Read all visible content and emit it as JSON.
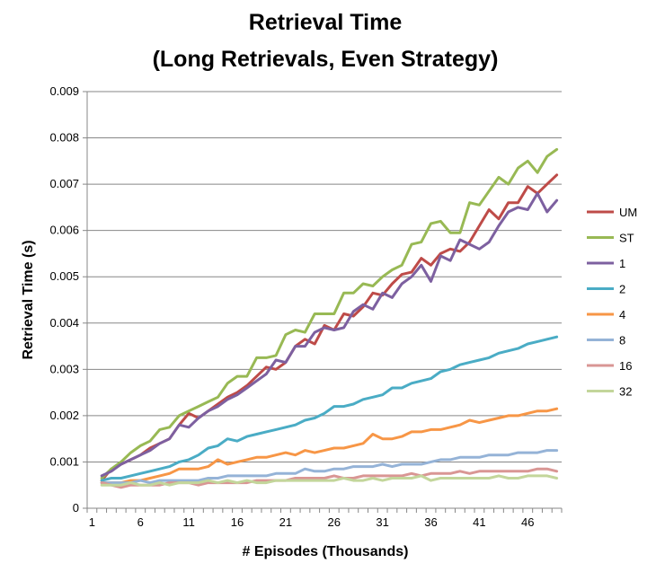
{
  "chart_data": {
    "type": "line",
    "title_line1": "Retrieval Time",
    "title_line2": "(Long Retrievals, Even Strategy)",
    "xlabel": "# Episodes (Thousands)",
    "ylabel": "Retrieval Time (s)",
    "x_ticks": [
      "1",
      "6",
      "11",
      "16",
      "21",
      "26",
      "31",
      "36",
      "41",
      "46"
    ],
    "y_ticks": [
      "0",
      "0.001",
      "0.002",
      "0.003",
      "0.004",
      "0.005",
      "0.006",
      "0.007",
      "0.008",
      "0.009"
    ],
    "xlim": [
      1,
      50
    ],
    "ylim": [
      0,
      0.009
    ],
    "grid": "horizontal",
    "legend_position": "right",
    "x": [
      2,
      3,
      4,
      5,
      6,
      7,
      8,
      9,
      10,
      11,
      12,
      13,
      14,
      15,
      16,
      17,
      18,
      19,
      20,
      21,
      22,
      23,
      24,
      25,
      26,
      27,
      28,
      29,
      30,
      31,
      32,
      33,
      34,
      35,
      36,
      37,
      38,
      39,
      40,
      41,
      42,
      43,
      44,
      45,
      46,
      47,
      48,
      49
    ],
    "series": [
      {
        "name": "UM",
        "color": "#be4b48",
        "values": [
          0.0006,
          0.00085,
          0.00095,
          0.00105,
          0.00115,
          0.0013,
          0.0014,
          0.0015,
          0.0018,
          0.00205,
          0.00195,
          0.0021,
          0.00225,
          0.0024,
          0.0025,
          0.00265,
          0.00285,
          0.00305,
          0.003,
          0.00315,
          0.0035,
          0.00365,
          0.00355,
          0.00395,
          0.00385,
          0.0042,
          0.00415,
          0.00435,
          0.00465,
          0.0046,
          0.00485,
          0.00505,
          0.0051,
          0.0054,
          0.00525,
          0.0055,
          0.0056,
          0.00555,
          0.00575,
          0.0061,
          0.00645,
          0.00625,
          0.0066,
          0.0066,
          0.00695,
          0.0068,
          0.007,
          0.0072
        ]
      },
      {
        "name": "ST",
        "color": "#98b954",
        "values": [
          0.00065,
          0.00085,
          0.001,
          0.0012,
          0.00135,
          0.00145,
          0.0017,
          0.00175,
          0.002,
          0.0021,
          0.0022,
          0.0023,
          0.0024,
          0.0027,
          0.00285,
          0.00285,
          0.00325,
          0.00325,
          0.0033,
          0.00375,
          0.00385,
          0.0038,
          0.0042,
          0.0042,
          0.0042,
          0.00465,
          0.00465,
          0.00485,
          0.0048,
          0.005,
          0.00515,
          0.00525,
          0.0057,
          0.00575,
          0.00615,
          0.0062,
          0.00595,
          0.00595,
          0.0066,
          0.00655,
          0.00685,
          0.00715,
          0.007,
          0.00735,
          0.0075,
          0.00725,
          0.0076,
          0.00775
        ]
      },
      {
        "name": "1",
        "color": "#7d60a0",
        "values": [
          0.0007,
          0.0008,
          0.00095,
          0.00105,
          0.00115,
          0.00125,
          0.0014,
          0.0015,
          0.0018,
          0.00175,
          0.00195,
          0.0021,
          0.0022,
          0.00235,
          0.00245,
          0.0026,
          0.00275,
          0.0029,
          0.0032,
          0.00315,
          0.0035,
          0.0035,
          0.0038,
          0.0039,
          0.00385,
          0.0039,
          0.00425,
          0.0044,
          0.0043,
          0.00465,
          0.00455,
          0.00485,
          0.005,
          0.00525,
          0.0049,
          0.00545,
          0.00535,
          0.0058,
          0.0057,
          0.0056,
          0.00575,
          0.0061,
          0.0064,
          0.0065,
          0.00645,
          0.0068,
          0.0064,
          0.00665
        ]
      },
      {
        "name": "2",
        "color": "#4aacc5",
        "values": [
          0.0006,
          0.00065,
          0.00065,
          0.0007,
          0.00075,
          0.0008,
          0.00085,
          0.0009,
          0.001,
          0.00105,
          0.00115,
          0.0013,
          0.00135,
          0.0015,
          0.00145,
          0.00155,
          0.0016,
          0.00165,
          0.0017,
          0.00175,
          0.0018,
          0.0019,
          0.00195,
          0.00205,
          0.0022,
          0.0022,
          0.00225,
          0.00235,
          0.0024,
          0.00245,
          0.0026,
          0.0026,
          0.0027,
          0.00275,
          0.0028,
          0.00295,
          0.003,
          0.0031,
          0.00315,
          0.0032,
          0.00325,
          0.00335,
          0.0034,
          0.00345,
          0.00355,
          0.0036,
          0.00365,
          0.0037
        ]
      },
      {
        "name": "4",
        "color": "#f79646",
        "values": [
          0.00055,
          0.00055,
          0.00055,
          0.0006,
          0.0006,
          0.00065,
          0.0007,
          0.00075,
          0.00085,
          0.00085,
          0.00085,
          0.0009,
          0.00105,
          0.00095,
          0.001,
          0.00105,
          0.0011,
          0.0011,
          0.00115,
          0.0012,
          0.00115,
          0.00125,
          0.0012,
          0.00125,
          0.0013,
          0.0013,
          0.00135,
          0.0014,
          0.0016,
          0.0015,
          0.0015,
          0.00155,
          0.00165,
          0.00165,
          0.0017,
          0.0017,
          0.00175,
          0.0018,
          0.0019,
          0.00185,
          0.0019,
          0.00195,
          0.002,
          0.002,
          0.00205,
          0.0021,
          0.0021,
          0.00215
        ]
      },
      {
        "name": "8",
        "color": "#95b3d7",
        "values": [
          0.00055,
          0.00055,
          0.00055,
          0.00055,
          0.0006,
          0.00055,
          0.0006,
          0.0006,
          0.0006,
          0.0006,
          0.0006,
          0.00065,
          0.00065,
          0.0007,
          0.0007,
          0.0007,
          0.0007,
          0.0007,
          0.00075,
          0.00075,
          0.00075,
          0.00085,
          0.0008,
          0.0008,
          0.00085,
          0.00085,
          0.0009,
          0.0009,
          0.0009,
          0.00095,
          0.0009,
          0.00095,
          0.00095,
          0.00095,
          0.001,
          0.00105,
          0.00105,
          0.0011,
          0.0011,
          0.0011,
          0.00115,
          0.00115,
          0.00115,
          0.0012,
          0.0012,
          0.0012,
          0.00125,
          0.00125
        ]
      },
      {
        "name": "16",
        "color": "#d99694",
        "values": [
          0.00055,
          0.0005,
          0.00045,
          0.0005,
          0.0005,
          0.0005,
          0.0005,
          0.00055,
          0.00055,
          0.00055,
          0.0005,
          0.00055,
          0.00055,
          0.00055,
          0.00055,
          0.00055,
          0.0006,
          0.0006,
          0.0006,
          0.0006,
          0.00065,
          0.00065,
          0.00065,
          0.00065,
          0.0007,
          0.00065,
          0.00065,
          0.0007,
          0.0007,
          0.0007,
          0.0007,
          0.0007,
          0.00075,
          0.0007,
          0.00075,
          0.00075,
          0.00075,
          0.0008,
          0.00075,
          0.0008,
          0.0008,
          0.0008,
          0.0008,
          0.0008,
          0.0008,
          0.00085,
          0.00085,
          0.0008
        ]
      },
      {
        "name": "32",
        "color": "#c3d69b",
        "values": [
          0.0005,
          0.0005,
          0.0005,
          0.00055,
          0.0005,
          0.0005,
          0.00055,
          0.0005,
          0.00055,
          0.00055,
          0.00055,
          0.0006,
          0.00055,
          0.0006,
          0.00055,
          0.0006,
          0.00055,
          0.00055,
          0.0006,
          0.0006,
          0.0006,
          0.0006,
          0.0006,
          0.0006,
          0.0006,
          0.00065,
          0.0006,
          0.0006,
          0.00065,
          0.0006,
          0.00065,
          0.00065,
          0.00065,
          0.0007,
          0.0006,
          0.00065,
          0.00065,
          0.00065,
          0.00065,
          0.00065,
          0.00065,
          0.0007,
          0.00065,
          0.00065,
          0.0007,
          0.0007,
          0.0007,
          0.00065
        ]
      }
    ]
  }
}
